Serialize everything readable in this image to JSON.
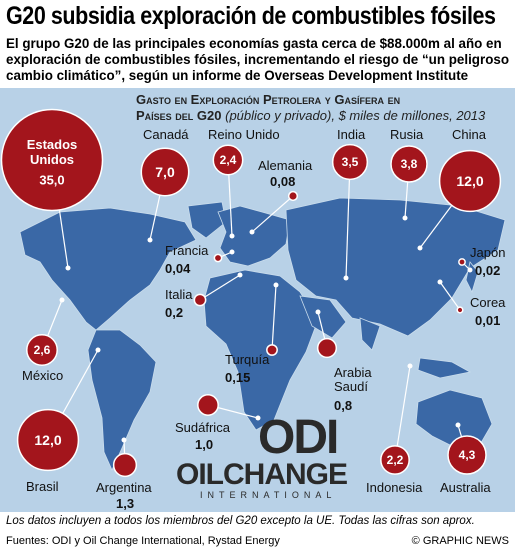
{
  "header": {
    "title": "G20 subsidia exploración de combustibles fósiles",
    "subtitle": "El grupo G20 de las principales economías gasta cerca de $88.000m al año en exploración de combustibles fósiles, incrementando el riesgo de “un peligroso cambio climático”, según un informe de Overseas Development Institute"
  },
  "chart_heading": {
    "line1": "Gasto en Exploración Petrolera y  Gasífera en",
    "bold2": "Países del G20",
    "italic2": "(público y privado),",
    "unit": "$ miles de millones, 2013"
  },
  "countries": [
    {
      "name": "Estados Unidos",
      "value": 35.0,
      "label": "35,0"
    },
    {
      "name": "Canadá",
      "value": 7.0,
      "label": "7,0"
    },
    {
      "name": "Reino Unido",
      "value": 2.4,
      "label": "2,4"
    },
    {
      "name": "Alemania",
      "value": 0.08,
      "label": "0,08"
    },
    {
      "name": "India",
      "value": 3.5,
      "label": "3,5"
    },
    {
      "name": "Rusia",
      "value": 3.8,
      "label": "3,8"
    },
    {
      "name": "China",
      "value": 12.0,
      "label": "12,0"
    },
    {
      "name": "Francia",
      "value": 0.04,
      "label": "0,04"
    },
    {
      "name": "Japón",
      "value": 0.02,
      "label": "0,02"
    },
    {
      "name": "Italia",
      "value": 0.2,
      "label": "0,2"
    },
    {
      "name": "Corea",
      "value": 0.01,
      "label": "0,01"
    },
    {
      "name": "México",
      "value": 2.6,
      "label": "2,6"
    },
    {
      "name": "Turquía",
      "value": 0.15,
      "label": "0,15"
    },
    {
      "name": "Arabia Saudí",
      "value": 0.8,
      "label": "0,8"
    },
    {
      "name": "Brasil",
      "value": 12.0,
      "label": "12,0"
    },
    {
      "name": "Sudáfrica",
      "value": 1.0,
      "label": "1,0"
    },
    {
      "name": "Argentina",
      "value": 1.3,
      "label": "1,3"
    },
    {
      "name": "Indonesia",
      "value": 2.2,
      "label": "2,2"
    },
    {
      "name": "Australia",
      "value": 4.3,
      "label": "4,3"
    }
  ],
  "logos": {
    "odi": "ODI",
    "oilchange": "OILCHANGE",
    "oilchange_sub": "INTERNATIONAL"
  },
  "footer": {
    "note": "Los datos incluyen a todos los miembros del G20 excepto la UE. Todas las cifras son aprox.",
    "source": "Fuentes: ODI y Oil Change International, Rystad Energy",
    "credit": "© GRAPHIC NEWS"
  }
}
